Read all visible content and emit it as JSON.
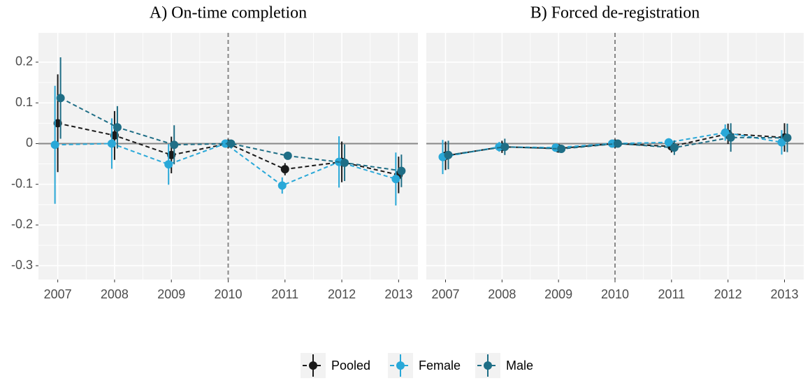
{
  "chart_data": [
    {
      "type": "line",
      "title": "A) On-time completion",
      "x": [
        2007,
        2008,
        2009,
        2010,
        2011,
        2012,
        2013
      ],
      "xlim": [
        2006.66,
        2013.34
      ],
      "xticks": [
        2007,
        2008,
        2009,
        2010,
        2011,
        2012,
        2013
      ],
      "ylim": [
        -0.334,
        0.272
      ],
      "yticks": [
        0.2,
        0.1,
        0,
        -0.1,
        -0.2,
        -0.3
      ],
      "vline": 2010,
      "hline": 0,
      "grid": true,
      "series": [
        {
          "name": "Pooled",
          "color": "#1a1a1a",
          "values": [
            0.05,
            0.02,
            -0.028,
            0,
            -0.063,
            -0.045,
            -0.077
          ],
          "errors": [
            0.12,
            0.06,
            0.045,
            0.005,
            0.015,
            0.05,
            0.045
          ]
        },
        {
          "name": "Female",
          "color": "#29a8d8",
          "values": [
            -0.003,
            0.0,
            -0.051,
            0,
            -0.103,
            -0.045,
            -0.087
          ],
          "errors": [
            0.145,
            0.062,
            0.05,
            0,
            0.02,
            0.063,
            0.065
          ]
        },
        {
          "name": "Male",
          "color": "#1f6e86",
          "values": [
            0.112,
            0.04,
            -0.003,
            0,
            -0.03,
            -0.047,
            -0.067
          ],
          "errors": [
            0.1,
            0.052,
            0.048,
            0,
            0.008,
            0.045,
            0.04
          ]
        }
      ]
    },
    {
      "type": "line",
      "title": "B) Forced de-registration",
      "x": [
        2007,
        2008,
        2009,
        2010,
        2011,
        2012,
        2013
      ],
      "xlim": [
        2006.66,
        2013.34
      ],
      "xticks": [
        2007,
        2008,
        2009,
        2010,
        2011,
        2012,
        2013
      ],
      "ylim": [
        -0.334,
        0.272
      ],
      "yticks": [
        0.2,
        0.1,
        0,
        -0.1,
        -0.2,
        -0.3
      ],
      "vline": 2010,
      "hline": 0,
      "grid": true,
      "series": [
        {
          "name": "Pooled",
          "color": "#1a1a1a",
          "values": [
            -0.03,
            -0.008,
            -0.012,
            0,
            -0.007,
            0.024,
            0.015
          ],
          "errors": [
            0.035,
            0.015,
            0.01,
            0.005,
            0.015,
            0.025,
            0.035
          ]
        },
        {
          "name": "Female",
          "color": "#29a8d8",
          "values": [
            -0.033,
            -0.008,
            -0.01,
            0,
            0.003,
            0.027,
            0.003
          ],
          "errors": [
            0.042,
            0.012,
            0.008,
            0,
            0.01,
            0.02,
            0.03
          ]
        },
        {
          "name": "Male",
          "color": "#1f6e86",
          "values": [
            -0.028,
            -0.008,
            -0.013,
            0,
            -0.01,
            0.015,
            0.014
          ],
          "errors": [
            0.035,
            0.02,
            0.01,
            0,
            0.018,
            0.035,
            0.035
          ]
        }
      ]
    }
  ]
}
